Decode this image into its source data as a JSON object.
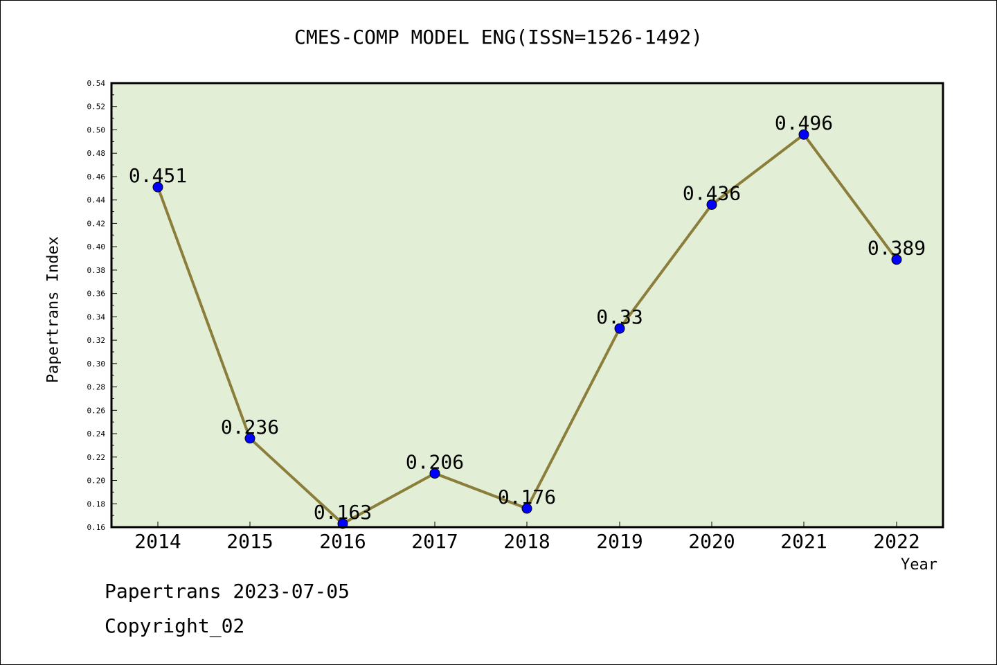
{
  "chart_data": {
    "type": "line",
    "title": "CMES-COMP MODEL ENG(ISSN=1526-1492)",
    "xlabel": "Year",
    "ylabel": "Papertrans Index",
    "categories": [
      "2014",
      "2015",
      "2016",
      "2017",
      "2018",
      "2019",
      "2020",
      "2021",
      "2022"
    ],
    "series": [
      {
        "values": [
          0.451,
          0.236,
          0.163,
          0.206,
          0.176,
          0.33,
          0.436,
          0.496,
          0.389
        ]
      }
    ],
    "data_labels": [
      "0.451",
      "0.236",
      "0.163",
      "0.206",
      "0.176",
      "0.33",
      "0.436",
      "0.496",
      "0.389"
    ],
    "ylim": [
      0.16,
      0.54
    ],
    "yticks": [
      "0.16",
      "0.18",
      "0.20",
      "0.22",
      "0.24",
      "0.26",
      "0.28",
      "0.30",
      "0.32",
      "0.34",
      "0.36",
      "0.38",
      "0.40",
      "0.42",
      "0.44",
      "0.46",
      "0.48",
      "0.50",
      "0.52",
      "0.54"
    ],
    "grid": false,
    "colors": {
      "plot_background": "#e2efd6",
      "line": "#8b7d3a",
      "marker": "#0000ff"
    }
  },
  "footer": {
    "line1": "Papertrans 2023-07-05",
    "line2": "Copyright_02"
  }
}
